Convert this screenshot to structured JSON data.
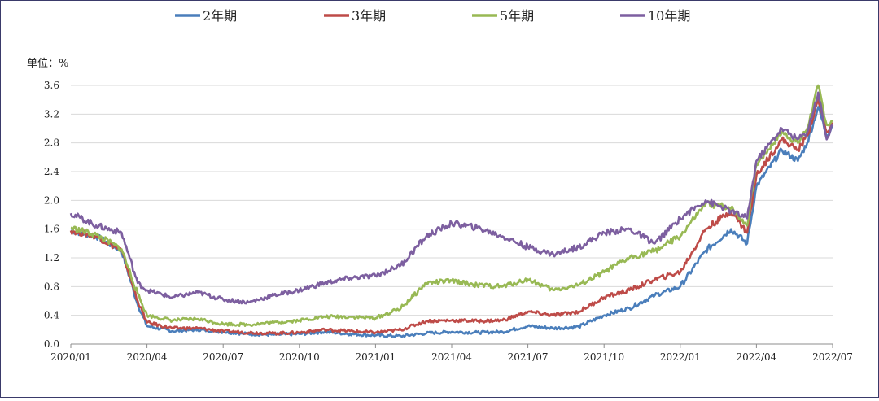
{
  "chart_data": {
    "type": "line",
    "title": "",
    "xlabel": "",
    "ylabel": "单位：%",
    "ylim": [
      0,
      3.6
    ],
    "y_ticks": [
      "0.0",
      "0.4",
      "0.8",
      "1.2",
      "1.6",
      "2.0",
      "2.4",
      "2.8",
      "3.2",
      "3.6"
    ],
    "x_ticks": [
      "2020/01",
      "2020/04",
      "2020/07",
      "2020/10",
      "2021/01",
      "2021/04",
      "2021/07",
      "2021/10",
      "2022/01",
      "2022/04",
      "2022/07"
    ],
    "grid": "horizontal",
    "legend_position": "top",
    "series": [
      {
        "name": "2年期",
        "color": "#4a7ebb",
        "points": [
          [
            "2020/01",
            1.58
          ],
          [
            "2020/02",
            1.5
          ],
          [
            "2020/03",
            1.3
          ],
          [
            "2020/03/20",
            0.55
          ],
          [
            "2020/04",
            0.25
          ],
          [
            "2020/05",
            0.18
          ],
          [
            "2020/06",
            0.2
          ],
          [
            "2020/07",
            0.17
          ],
          [
            "2020/08",
            0.14
          ],
          [
            "2020/09",
            0.13
          ],
          [
            "2020/10",
            0.14
          ],
          [
            "2020/11",
            0.17
          ],
          [
            "2020/12",
            0.14
          ],
          [
            "2021/01",
            0.12
          ],
          [
            "2021/02",
            0.11
          ],
          [
            "2021/03",
            0.15
          ],
          [
            "2021/04",
            0.17
          ],
          [
            "2021/05",
            0.16
          ],
          [
            "2021/06",
            0.17
          ],
          [
            "2021/07",
            0.25
          ],
          [
            "2021/08",
            0.22
          ],
          [
            "2021/09",
            0.24
          ],
          [
            "2021/10",
            0.4
          ],
          [
            "2021/11",
            0.5
          ],
          [
            "2021/12",
            0.68
          ],
          [
            "2022/01",
            0.8
          ],
          [
            "2022/02",
            1.3
          ],
          [
            "2022/03",
            1.6
          ],
          [
            "2022/03/20",
            1.4
          ],
          [
            "2022/04",
            2.2
          ],
          [
            "2022/05",
            2.7
          ],
          [
            "2022/05/20",
            2.55
          ],
          [
            "2022/06",
            2.8
          ],
          [
            "2022/06/14",
            3.3
          ],
          [
            "2022/06/24",
            2.9
          ],
          [
            "2022/07",
            3.05
          ]
        ]
      },
      {
        "name": "3年期",
        "color": "#be4b48",
        "points": [
          [
            "2020/01",
            1.58
          ],
          [
            "2020/02",
            1.5
          ],
          [
            "2020/03",
            1.3
          ],
          [
            "2020/03/20",
            0.6
          ],
          [
            "2020/04",
            0.3
          ],
          [
            "2020/05",
            0.22
          ],
          [
            "2020/06",
            0.22
          ],
          [
            "2020/07",
            0.18
          ],
          [
            "2020/08",
            0.16
          ],
          [
            "2020/09",
            0.15
          ],
          [
            "2020/10",
            0.16
          ],
          [
            "2020/11",
            0.2
          ],
          [
            "2020/12",
            0.18
          ],
          [
            "2021/01",
            0.16
          ],
          [
            "2021/02",
            0.2
          ],
          [
            "2021/03",
            0.32
          ],
          [
            "2021/04",
            0.33
          ],
          [
            "2021/05",
            0.32
          ],
          [
            "2021/06",
            0.33
          ],
          [
            "2021/07",
            0.45
          ],
          [
            "2021/08",
            0.4
          ],
          [
            "2021/09",
            0.45
          ],
          [
            "2021/10",
            0.65
          ],
          [
            "2021/11",
            0.75
          ],
          [
            "2021/12",
            0.9
          ],
          [
            "2022/01",
            1.0
          ],
          [
            "2022/02",
            1.6
          ],
          [
            "2022/03",
            1.85
          ],
          [
            "2022/03/20",
            1.55
          ],
          [
            "2022/04",
            2.35
          ],
          [
            "2022/05",
            2.85
          ],
          [
            "2022/05/20",
            2.7
          ],
          [
            "2022/06",
            2.9
          ],
          [
            "2022/06/14",
            3.4
          ],
          [
            "2022/06/24",
            2.95
          ],
          [
            "2022/07",
            3.08
          ]
        ]
      },
      {
        "name": "5年期",
        "color": "#98b954",
        "points": [
          [
            "2020/01",
            1.62
          ],
          [
            "2020/02",
            1.52
          ],
          [
            "2020/03",
            1.32
          ],
          [
            "2020/03/20",
            0.7
          ],
          [
            "2020/04",
            0.4
          ],
          [
            "2020/05",
            0.33
          ],
          [
            "2020/06",
            0.35
          ],
          [
            "2020/07",
            0.28
          ],
          [
            "2020/08",
            0.27
          ],
          [
            "2020/09",
            0.3
          ],
          [
            "2020/10",
            0.33
          ],
          [
            "2020/11",
            0.38
          ],
          [
            "2020/12",
            0.38
          ],
          [
            "2021/01",
            0.36
          ],
          [
            "2021/02",
            0.5
          ],
          [
            "2021/03",
            0.85
          ],
          [
            "2021/04",
            0.88
          ],
          [
            "2021/05",
            0.82
          ],
          [
            "2021/06",
            0.8
          ],
          [
            "2021/07",
            0.9
          ],
          [
            "2021/08",
            0.75
          ],
          [
            "2021/09",
            0.82
          ],
          [
            "2021/10",
            1.0
          ],
          [
            "2021/11",
            1.2
          ],
          [
            "2021/12",
            1.3
          ],
          [
            "2022/01",
            1.5
          ],
          [
            "2022/02",
            1.95
          ],
          [
            "2022/03",
            1.9
          ],
          [
            "2022/03/20",
            1.65
          ],
          [
            "2022/04",
            2.5
          ],
          [
            "2022/05",
            2.95
          ],
          [
            "2022/05/20",
            2.8
          ],
          [
            "2022/06",
            3.0
          ],
          [
            "2022/06/14",
            3.6
          ],
          [
            "2022/06/24",
            3.05
          ],
          [
            "2022/07",
            3.1
          ]
        ]
      },
      {
        "name": "10年期",
        "color": "#7d5fa0",
        "points": [
          [
            "2020/01",
            1.82
          ],
          [
            "2020/02",
            1.65
          ],
          [
            "2020/03",
            1.55
          ],
          [
            "2020/03/20",
            0.85
          ],
          [
            "2020/04",
            0.75
          ],
          [
            "2020/05",
            0.65
          ],
          [
            "2020/06",
            0.72
          ],
          [
            "2020/07",
            0.62
          ],
          [
            "2020/08",
            0.58
          ],
          [
            "2020/09",
            0.68
          ],
          [
            "2020/10",
            0.75
          ],
          [
            "2020/11",
            0.85
          ],
          [
            "2020/12",
            0.92
          ],
          [
            "2021/01",
            0.95
          ],
          [
            "2021/02",
            1.1
          ],
          [
            "2021/03",
            1.5
          ],
          [
            "2021/04",
            1.68
          ],
          [
            "2021/05",
            1.62
          ],
          [
            "2021/06",
            1.5
          ],
          [
            "2021/07",
            1.35
          ],
          [
            "2021/08",
            1.25
          ],
          [
            "2021/09",
            1.35
          ],
          [
            "2021/10",
            1.55
          ],
          [
            "2021/11",
            1.6
          ],
          [
            "2021/12",
            1.4
          ],
          [
            "2022/01",
            1.75
          ],
          [
            "2022/02",
            2.0
          ],
          [
            "2022/03",
            1.85
          ],
          [
            "2022/03/20",
            1.75
          ],
          [
            "2022/04",
            2.55
          ],
          [
            "2022/05",
            3.0
          ],
          [
            "2022/05/20",
            2.85
          ],
          [
            "2022/06",
            2.95
          ],
          [
            "2022/06/14",
            3.5
          ],
          [
            "2022/06/24",
            2.85
          ],
          [
            "2022/07",
            3.05
          ]
        ]
      }
    ]
  }
}
